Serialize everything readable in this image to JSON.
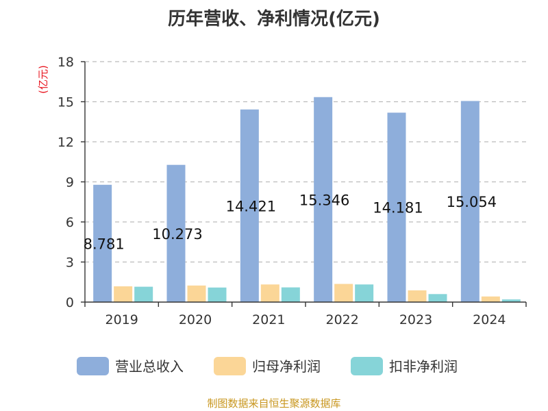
{
  "chart_data": {
    "type": "bar",
    "title": "历年营收、净利情况(亿元)",
    "ylabel": "(亿元)",
    "xlabel": "",
    "categories": [
      "2019",
      "2020",
      "2021",
      "2022",
      "2023",
      "2024"
    ],
    "ylim": [
      0,
      18
    ],
    "yticks": [
      "0",
      "3",
      "6",
      "9",
      "12",
      "15",
      "18"
    ],
    "grid": true,
    "legend_position": "bottom",
    "series": [
      {
        "name": "营业总收入",
        "color": "#8eaedb",
        "values": [
          8.781,
          10.273,
          14.421,
          15.346,
          14.181,
          15.054
        ],
        "labels": [
          "8.781",
          "10.273",
          "14.421",
          "15.346",
          "14.181",
          "15.054"
        ]
      },
      {
        "name": "归母净利润",
        "color": "#fbd697",
        "values": [
          1.18,
          1.24,
          1.32,
          1.36,
          0.88,
          0.42
        ]
      },
      {
        "name": "扣非净利润",
        "color": "#86d4d8",
        "values": [
          1.15,
          1.09,
          1.1,
          1.32,
          0.6,
          0.2
        ]
      }
    ]
  },
  "source": "制图数据来自恒生聚源数据库"
}
